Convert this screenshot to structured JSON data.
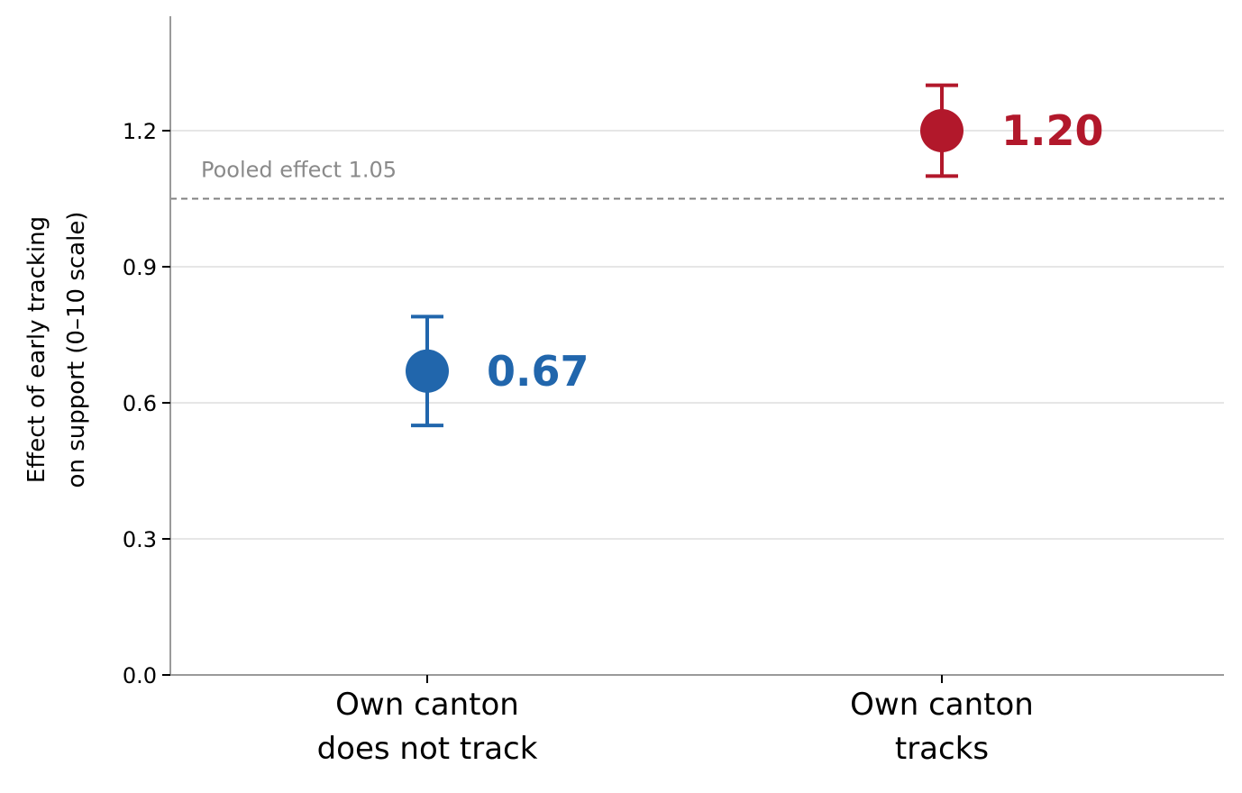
{
  "chart_data": {
    "type": "scatter",
    "ylabel_lines": [
      "Effect of early tracking",
      "on support (0–10 scale)"
    ],
    "ylim": [
      0,
      1.45
    ],
    "yticks": [
      0.0,
      0.3,
      0.6,
      0.9,
      1.2
    ],
    "ytick_labels": [
      "0.0",
      "0.3",
      "0.6",
      "0.9",
      "1.2"
    ],
    "grid": "horizontal",
    "categories": [
      {
        "lines": [
          "Own canton",
          "does not track"
        ]
      },
      {
        "lines": [
          "Own canton",
          "tracks"
        ]
      }
    ],
    "points": [
      {
        "value": 0.67,
        "ci_low": 0.55,
        "ci_high": 0.79,
        "label": "0.67",
        "color": "#2166ac"
      },
      {
        "value": 1.2,
        "ci_low": 1.1,
        "ci_high": 1.3,
        "label": "1.20",
        "color": "#b2182b"
      }
    ],
    "reference_line": {
      "value": 1.05,
      "label": "Pooled effect  1.05",
      "color": "#808080",
      "style": "dashed"
    }
  }
}
